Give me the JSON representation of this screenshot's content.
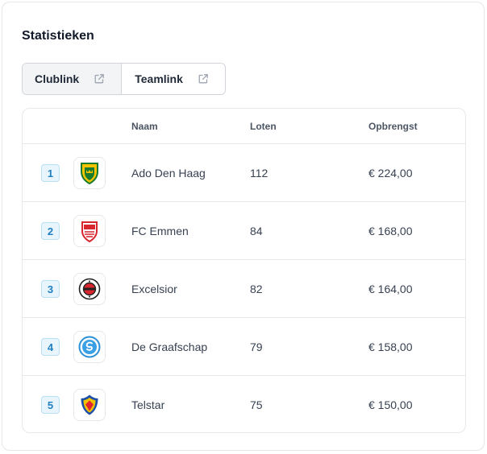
{
  "panel": {
    "title": "Statistieken"
  },
  "buttons": [
    {
      "label": "Clublink",
      "icon": "external-link-icon"
    },
    {
      "label": "Teamlink",
      "icon": "external-link-icon"
    }
  ],
  "table": {
    "headers": {
      "naam": "Naam",
      "loten": "Loten",
      "opbrengst": "Opbrengst"
    },
    "rows": [
      {
        "rank": "1",
        "naam": "Ado Den Haag",
        "loten": "112",
        "opbrengst": "€ 224,00",
        "logo": "ado-den-haag-logo"
      },
      {
        "rank": "2",
        "naam": "FC Emmen",
        "loten": "84",
        "opbrengst": "€ 168,00",
        "logo": "fc-emmen-logo"
      },
      {
        "rank": "3",
        "naam": "Excelsior",
        "loten": "82",
        "opbrengst": "€ 164,00",
        "logo": "excelsior-logo"
      },
      {
        "rank": "4",
        "naam": "De Graafschap",
        "loten": "79",
        "opbrengst": "€ 158,00",
        "logo": "de-graafschap-logo"
      },
      {
        "rank": "5",
        "naam": "Telstar",
        "loten": "75",
        "opbrengst": "€ 150,00",
        "logo": "telstar-logo"
      }
    ]
  },
  "colors": {
    "rank_text": "#1f7fc0",
    "rank_bg": "#e8f5fd",
    "border": "#e5e7eb"
  }
}
